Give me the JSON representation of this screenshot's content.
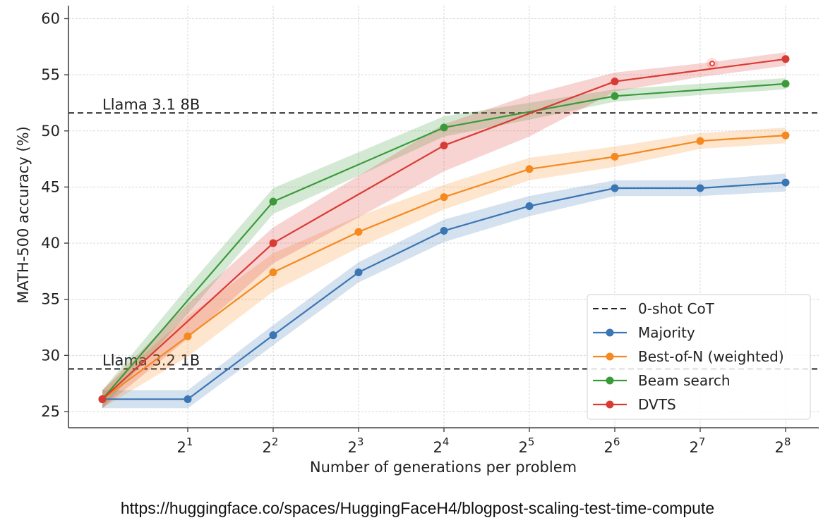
{
  "chart_data": {
    "type": "line",
    "title": "",
    "xlabel": "Number of generations per problem",
    "ylabel": "MATH-500 accuracy (%)",
    "x_scale": "log2",
    "x": [
      1,
      2,
      4,
      8,
      16,
      32,
      64,
      128,
      256
    ],
    "x_tick_labels": [
      {
        "base": "2",
        "exp": "1",
        "value": 2
      },
      {
        "base": "2",
        "exp": "2",
        "value": 4
      },
      {
        "base": "2",
        "exp": "3",
        "value": 8
      },
      {
        "base": "2",
        "exp": "4",
        "value": 16
      },
      {
        "base": "2",
        "exp": "5",
        "value": 32
      },
      {
        "base": "2",
        "exp": "6",
        "value": 64
      },
      {
        "base": "2",
        "exp": "7",
        "value": 128
      },
      {
        "base": "2",
        "exp": "8",
        "value": 256
      }
    ],
    "y_ticks": [
      25,
      30,
      35,
      40,
      45,
      50,
      55,
      60
    ],
    "ylim": [
      23.6,
      62.3
    ],
    "xlim_log2": [
      -0.4,
      8.4
    ],
    "grid": true,
    "legend_position": "lower-right",
    "reference_lines": [
      {
        "name": "Llama 3.1 8B",
        "label": "Llama 3.1 8B",
        "value": 51.6,
        "color": "#222222",
        "style": "dashed"
      },
      {
        "name": "Llama 3.2 1B",
        "label": "Llama 3.2 1B",
        "value": 28.8,
        "color": "#222222",
        "style": "dashed"
      }
    ],
    "series": [
      {
        "name": "Majority",
        "color": "#3a75b4",
        "values": [
          26.1,
          26.1,
          31.8,
          37.4,
          41.1,
          43.3,
          44.9,
          44.9,
          45.4
        ],
        "lower": [
          25.3,
          25.3,
          30.9,
          36.5,
          40.1,
          42.4,
          44.2,
          44.2,
          44.6
        ],
        "upper": [
          26.9,
          26.9,
          32.7,
          38.3,
          42.1,
          44.2,
          45.6,
          45.6,
          46.2
        ],
        "markers": [
          true,
          true,
          true,
          true,
          true,
          true,
          true,
          true,
          true
        ]
      },
      {
        "name": "Best-of-N (weighted)",
        "color": "#f5891e",
        "values": [
          26.1,
          31.7,
          37.4,
          41.0,
          44.1,
          46.6,
          47.7,
          49.1,
          49.6
        ],
        "lower": [
          25.3,
          29.9,
          35.7,
          39.6,
          43.0,
          45.6,
          46.8,
          48.4,
          48.9
        ],
        "upper": [
          26.9,
          33.5,
          39.1,
          42.4,
          45.2,
          47.6,
          48.6,
          49.8,
          50.3
        ],
        "markers": [
          true,
          true,
          true,
          true,
          true,
          true,
          true,
          true,
          true
        ]
      },
      {
        "name": "Beam search",
        "color": "#3a9a3a",
        "values": [
          26.1,
          34.9,
          43.7,
          47.0,
          50.3,
          51.7,
          53.1,
          53.65,
          54.2
        ],
        "lower": [
          25.3,
          33.7,
          42.6,
          46.0,
          49.5,
          51.0,
          52.6,
          53.2,
          53.7
        ],
        "upper": [
          26.9,
          36.1,
          44.9,
          48.1,
          51.3,
          52.5,
          53.7,
          54.2,
          54.7
        ],
        "markers": [
          true,
          false,
          true,
          false,
          true,
          false,
          true,
          false,
          true
        ]
      },
      {
        "name": "DVTS",
        "color": "#d93b34",
        "values": [
          26.1,
          33.05,
          40.0,
          44.35,
          48.7,
          51.55,
          54.4,
          55.4,
          56.4
        ],
        "lower": [
          25.3,
          31.5,
          38.2,
          42.3,
          46.4,
          49.5,
          53.5,
          54.8,
          55.8
        ],
        "upper": [
          26.9,
          34.6,
          41.4,
          46.0,
          50.6,
          53.2,
          55.2,
          56.0,
          57.0
        ],
        "markers": [
          true,
          false,
          true,
          false,
          true,
          false,
          true,
          false,
          true
        ]
      }
    ],
    "legend": [
      {
        "label": "0-shot CoT",
        "kind": "dashed",
        "color": "#222222"
      },
      {
        "label": "Majority",
        "kind": "line-marker",
        "color": "#3a75b4"
      },
      {
        "label": "Best-of-N (weighted)",
        "kind": "line-marker",
        "color": "#f5891e"
      },
      {
        "label": "Beam search",
        "kind": "line-marker",
        "color": "#3a9a3a"
      },
      {
        "label": "DVTS",
        "kind": "line-marker",
        "color": "#d93b34"
      }
    ],
    "annotations": [
      {
        "type": "ring-marker",
        "x_log2": 7.14,
        "y": 56.0,
        "color": "#e8322b"
      }
    ]
  },
  "caption": "https://huggingface.co/spaces/HuggingFaceH4/blogpost-scaling-test-time-compute"
}
